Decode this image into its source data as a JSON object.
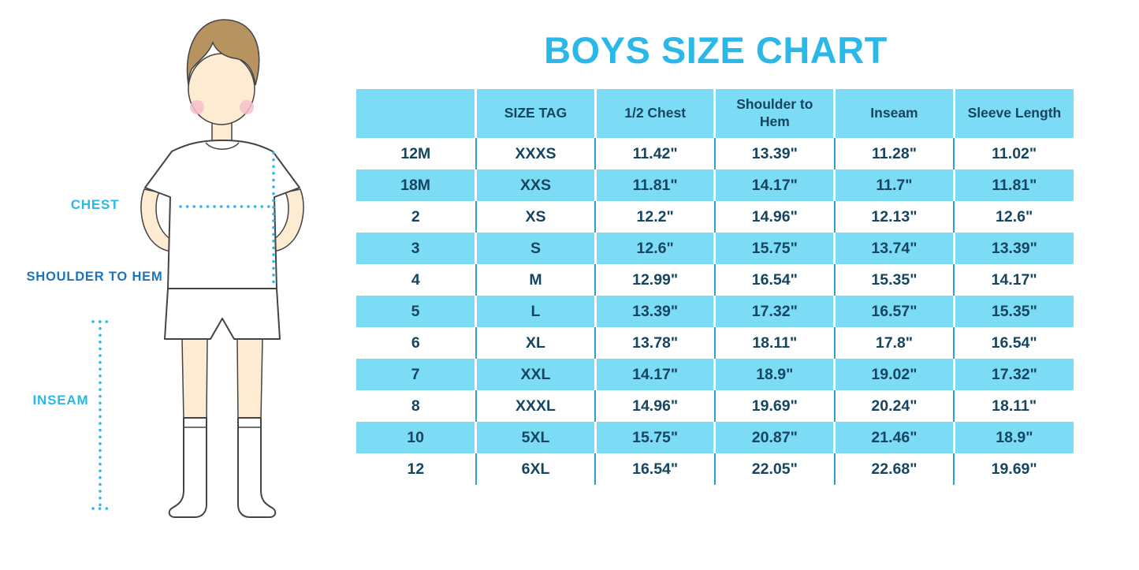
{
  "page": {
    "title": "BOYS SIZE CHART"
  },
  "illustration": {
    "figure": "boy-in-white-tshirt-shorts-and-knee-socks",
    "labels": {
      "chest": "CHEST",
      "shoulder_to_hem": "SHOULDER TO HEM",
      "inseam": "INSEAM"
    }
  },
  "colors": {
    "title_cyan": "#2AB8E8",
    "table_fill_cyan": "#7CDBF5",
    "text_navy": "#16455F",
    "label_blue": "#1C75BC"
  },
  "chart_data": {
    "type": "table",
    "title": "BOYS SIZE CHART",
    "units": "inches",
    "columns": [
      "",
      "SIZE TAG",
      "1/2 Chest",
      "Shoulder to Hem",
      "Inseam",
      "Sleeve Length"
    ],
    "rows": [
      [
        "12M",
        "XXXS",
        "11.42\"",
        "13.39\"",
        "11.28\"",
        "11.02\""
      ],
      [
        "18M",
        "XXS",
        "11.81\"",
        "14.17\"",
        "11.7\"",
        "11.81\""
      ],
      [
        "2",
        "XS",
        "12.2\"",
        "14.96\"",
        "12.13\"",
        "12.6\""
      ],
      [
        "3",
        "S",
        "12.6\"",
        "15.75\"",
        "13.74\"",
        "13.39\""
      ],
      [
        "4",
        "M",
        "12.99\"",
        "16.54\"",
        "15.35\"",
        "14.17\""
      ],
      [
        "5",
        "L",
        "13.39\"",
        "17.32\"",
        "16.57\"",
        "15.35\""
      ],
      [
        "6",
        "XL",
        "13.78\"",
        "18.11\"",
        "17.8\"",
        "16.54\""
      ],
      [
        "7",
        "XXL",
        "14.17\"",
        "18.9\"",
        "19.02\"",
        "17.32\""
      ],
      [
        "8",
        "XXXL",
        "14.96\"",
        "19.69\"",
        "20.24\"",
        "18.11\""
      ],
      [
        "10",
        "5XL",
        "15.75\"",
        "20.87\"",
        "21.46\"",
        "18.9\""
      ],
      [
        "12",
        "6XL",
        "16.54\"",
        "22.05\"",
        "22.68\"",
        "19.69\""
      ]
    ],
    "layout_hints": {
      "striping": "header row and every even data row filled light cyan, others white",
      "column_separators": "white on cyan rows, cyan on white rows"
    }
  }
}
